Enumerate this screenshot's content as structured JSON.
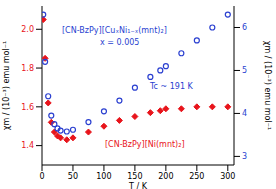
{
  "chart_data": {
    "type": "line",
    "x": [
      2,
      5,
      10,
      15,
      20,
      25,
      30,
      40,
      50,
      75,
      100,
      125,
      150,
      175,
      191,
      200,
      225,
      250,
      275,
      300
    ],
    "series": [
      {
        "name": "[CN-BzPy][Ni(mnt)₂]",
        "color": "#e8141b",
        "marker": "diamond",
        "line_style": "none",
        "values": [
          2.05,
          1.85,
          1.62,
          1.52,
          1.47,
          1.45,
          1.44,
          1.43,
          1.44,
          1.47,
          1.5,
          1.53,
          1.55,
          1.57,
          1.58,
          1.59,
          1.59,
          1.6,
          1.6,
          1.6
        ]
      },
      {
        "name": "[CN-BzPy][CuₓNi₁₋ₓ(mnt)₂]",
        "color": "#2a3fd0",
        "marker": "circle",
        "line_style": "none",
        "axis": "y2",
        "values": [
          6.3,
          5.2,
          4.4,
          3.95,
          3.75,
          3.65,
          3.6,
          3.58,
          3.62,
          3.8,
          4.05,
          4.3,
          4.6,
          4.85,
          5.0,
          5.1,
          5.4,
          5.7,
          6.0,
          6.3
        ]
      }
    ],
    "xlabel": "T / K",
    "ylabel": "χm / (10⁻³) emu mol⁻¹",
    "y2label": "χm / (10⁻³) emu mol⁻¹",
    "xlim": [
      0,
      310
    ],
    "xticks": [
      0,
      50,
      100,
      150,
      200,
      250,
      300
    ],
    "ylim": [
      1.3,
      2.12
    ],
    "yticks": [
      1.4,
      1.6,
      1.8,
      {
        "value": 2,
        "label": "2.0"
      }
    ],
    "y2lim": [
      2.8,
      6.5
    ],
    "y2ticks": [
      3,
      4,
      5,
      6
    ],
    "annotations": [
      "x = 0.005",
      "Tc ~ 191 K"
    ]
  }
}
